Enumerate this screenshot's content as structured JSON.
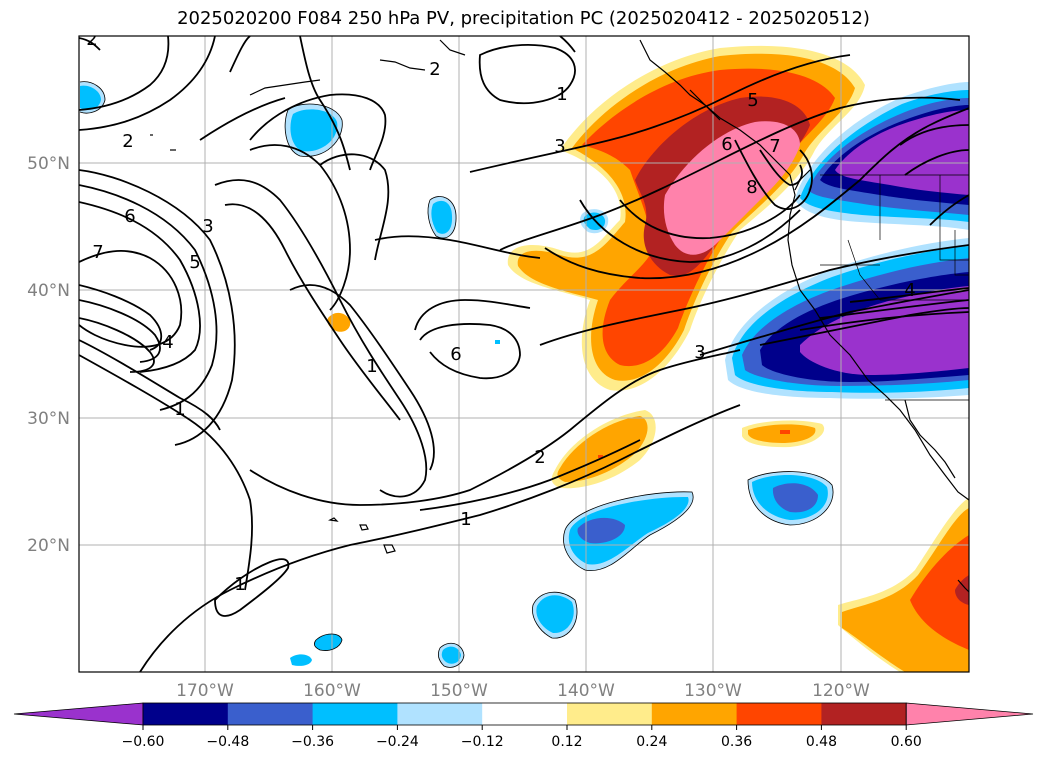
{
  "title": "2025020200 F084 250 hPa PV, precipitation PC (2025020412 - 2025020512)",
  "map": {
    "longitude_labels": [
      "170°W",
      "160°W",
      "150°W",
      "140°W",
      "130°W",
      "120°W"
    ],
    "latitude_labels": [
      "50°N",
      "40°N",
      "30°N",
      "20°N"
    ],
    "pv_contour_labels": [
      "2",
      "1",
      "2",
      "3",
      "1",
      "5",
      "6",
      "7",
      "8",
      "6",
      "3",
      "5",
      "4",
      "1",
      "7",
      "6",
      "1",
      "2",
      "1",
      "3",
      "4",
      "2"
    ]
  },
  "colorbar": {
    "tick_labels": [
      "−0.60",
      "−0.48",
      "−0.36",
      "−0.24",
      "−0.12",
      "0.12",
      "0.24",
      "0.36",
      "0.48",
      "0.60"
    ],
    "colors": [
      "#9a32cd",
      "#00008b",
      "#3a5fcd",
      "#00bfff",
      "#b0e2ff",
      "#ffffff",
      "#ffec8b",
      "#ffa500",
      "#ff4500",
      "#b22222",
      "#ff82ab"
    ],
    "extend": "both"
  },
  "colors": {
    "neg_strong": "#9a32cd",
    "neg_dark": "#00008b",
    "neg_mid": "#3a5fcd",
    "neg_light": "#00bfff",
    "neg_pale": "#b0e2ff",
    "pos_pale": "#ffec8b",
    "pos_light": "#ffa500",
    "pos_mid": "#ff4500",
    "pos_dark": "#b22222",
    "pos_strong": "#ff82ab"
  }
}
